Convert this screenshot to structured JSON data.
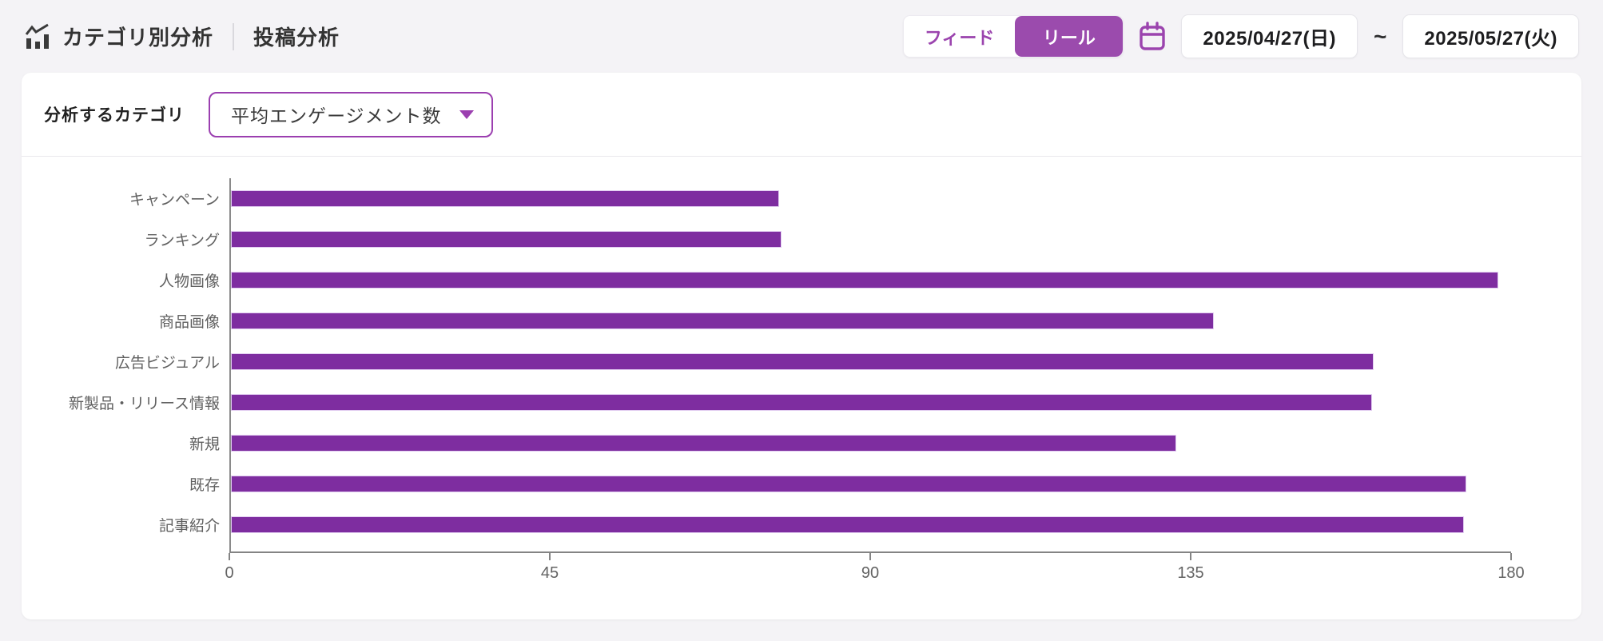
{
  "header": {
    "title": "カテゴリ別分析",
    "subtitle": "投稿分析",
    "tabs": [
      {
        "label": "フィード",
        "selected": false
      },
      {
        "label": "リール",
        "selected": true
      }
    ],
    "date_range": {
      "start": "2025/04/27(日)",
      "separator": "~",
      "end": "2025/05/27(火)"
    }
  },
  "filter": {
    "label": "分析するカテゴリ",
    "selected_option": "平均エンゲージメント数"
  },
  "colors": {
    "accent_purple": "#9b4bad",
    "bar_purple": "#7e2da0",
    "page_background": "#f4f3f6",
    "axis_gray": "#848484"
  },
  "chart_data": {
    "type": "bar",
    "orientation": "horizontal",
    "metric": "平均エンゲージメント数",
    "categories": [
      "キャンペーン",
      "ランキング",
      "人物画像",
      "商品画像",
      "広告ビジュアル",
      "新製品・リリース情報",
      "新規",
      "既存",
      "記事紹介"
    ],
    "values": [
      77,
      77.3,
      178,
      138,
      160.5,
      160.2,
      132.7,
      173.5,
      173.2
    ],
    "xlim": [
      0,
      180
    ],
    "xticks": [
      0,
      45,
      90,
      135,
      180
    ],
    "bar_color": "#7e2da0",
    "grid": false,
    "legend": false
  }
}
